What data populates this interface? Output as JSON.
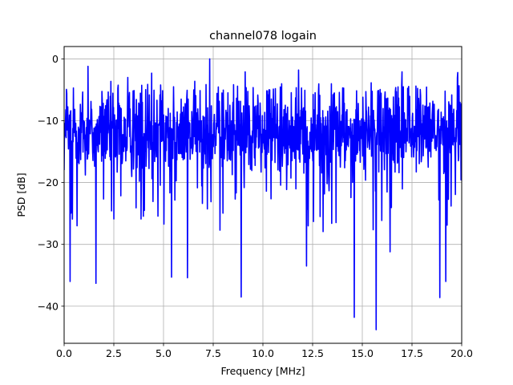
{
  "chart_data": {
    "type": "line",
    "title": "channel078 logain",
    "xlabel": "Frequency [MHz]",
    "ylabel": "PSD [dB]",
    "xlim": [
      0,
      20
    ],
    "ylim": [
      -46,
      2
    ],
    "xticks": [
      0,
      2.5,
      5,
      7.5,
      10,
      12.5,
      15,
      17.5,
      20
    ],
    "xtick_labels": [
      "0.0",
      "2.5",
      "5.0",
      "7.5",
      "10.0",
      "12.5",
      "15.0",
      "17.5",
      "20.0"
    ],
    "yticks": [
      0,
      -10,
      -20,
      -30,
      -40
    ],
    "ytick_labels": [
      "0",
      "−10",
      "−20",
      "−30",
      "−40"
    ],
    "grid": true,
    "legend": "none",
    "series": [
      {
        "color": "#0000ff",
        "x_range": [
          0,
          20
        ],
        "n_points": 1200,
        "typical_range": [
          -20,
          -4
        ],
        "mean": -12,
        "peaks": [
          {
            "x": 7.33,
            "y": 0.0
          },
          {
            "x": 1.2,
            "y": -1.2
          },
          {
            "x": 3.2,
            "y": -3.0
          },
          {
            "x": 4.4,
            "y": -2.3
          },
          {
            "x": 9.1,
            "y": -2.1
          },
          {
            "x": 11.8,
            "y": -1.8
          },
          {
            "x": 17.0,
            "y": -2.1
          },
          {
            "x": 19.8,
            "y": -2.2
          }
        ],
        "dips": [
          {
            "x": 0.3,
            "y": -36.0
          },
          {
            "x": 1.6,
            "y": -36.3
          },
          {
            "x": 5.4,
            "y": -35.3
          },
          {
            "x": 6.2,
            "y": -35.4
          },
          {
            "x": 8.9,
            "y": -38.5
          },
          {
            "x": 12.2,
            "y": -33.5
          },
          {
            "x": 14.6,
            "y": -41.8
          },
          {
            "x": 15.7,
            "y": -43.8
          },
          {
            "x": 16.4,
            "y": -31.2
          },
          {
            "x": 18.9,
            "y": -38.6
          },
          {
            "x": 19.2,
            "y": -36.0
          }
        ]
      }
    ]
  }
}
